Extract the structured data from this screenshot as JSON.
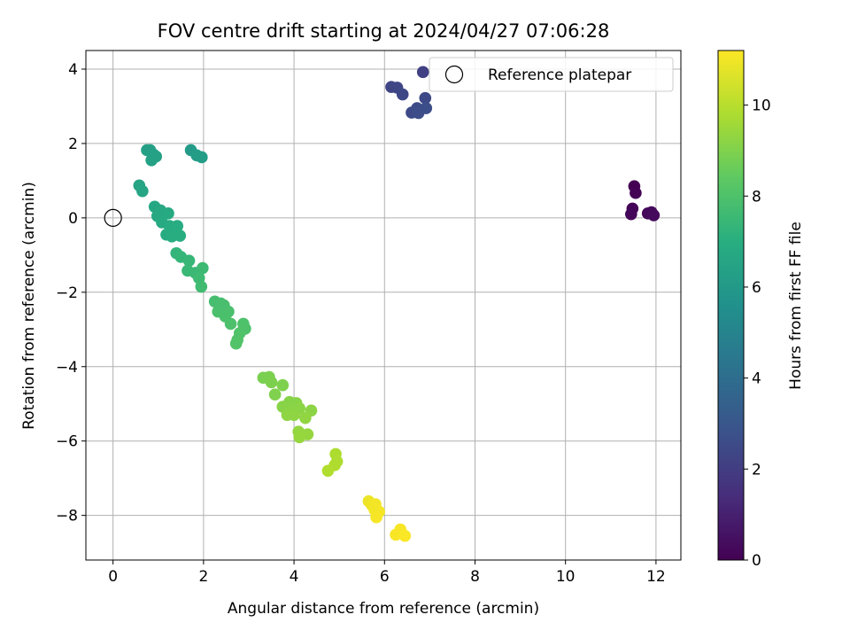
{
  "chart_data": {
    "type": "scatter",
    "title": "FOV centre drift starting at 2024/04/27 07:06:28",
    "xlabel": "Angular distance from reference (arcmin)",
    "ylabel": "Rotation from reference (arcmin)",
    "xlim": [
      -0.6,
      12.55
    ],
    "ylim": [
      -9.2,
      4.5
    ],
    "xticks": [
      0,
      2,
      4,
      6,
      8,
      10,
      12
    ],
    "yticks": [
      -8,
      -6,
      -4,
      -2,
      0,
      2,
      4
    ],
    "grid": true,
    "legend": {
      "placement": "top-right",
      "entries": [
        "Reference platepar"
      ]
    },
    "reference_point": {
      "x": 0,
      "y": 0
    },
    "colorbar": {
      "label": "Hours from first FF file",
      "range": [
        0,
        11.2
      ],
      "ticks": [
        0,
        2,
        4,
        6,
        8,
        10
      ],
      "colormap": "viridis"
    },
    "series": [
      {
        "values": [
          {
            "x": 11.52,
            "y": 0.85,
            "h": 0.0
          },
          {
            "x": 11.55,
            "y": 0.67,
            "h": 0.05
          },
          {
            "x": 11.48,
            "y": 0.25,
            "h": 0.1
          },
          {
            "x": 11.45,
            "y": 0.1,
            "h": 0.15
          },
          {
            "x": 11.82,
            "y": 0.12,
            "h": 0.2
          },
          {
            "x": 11.9,
            "y": 0.15,
            "h": 0.25
          },
          {
            "x": 11.95,
            "y": 0.07,
            "h": 0.3
          },
          {
            "x": 6.85,
            "y": 3.92,
            "h": 2.1
          },
          {
            "x": 6.15,
            "y": 3.52,
            "h": 2.3
          },
          {
            "x": 6.28,
            "y": 3.5,
            "h": 2.35
          },
          {
            "x": 6.4,
            "y": 3.32,
            "h": 2.4
          },
          {
            "x": 6.9,
            "y": 3.22,
            "h": 2.45
          },
          {
            "x": 6.6,
            "y": 2.83,
            "h": 2.5
          },
          {
            "x": 6.72,
            "y": 2.95,
            "h": 2.55
          },
          {
            "x": 6.75,
            "y": 2.82,
            "h": 2.6
          },
          {
            "x": 6.92,
            "y": 2.95,
            "h": 2.65
          },
          {
            "x": 1.72,
            "y": 1.82,
            "h": 6.1
          },
          {
            "x": 1.85,
            "y": 1.68,
            "h": 6.15
          },
          {
            "x": 1.96,
            "y": 1.63,
            "h": 6.2
          },
          {
            "x": 0.75,
            "y": 1.82,
            "h": 6.3
          },
          {
            "x": 0.82,
            "y": 1.82,
            "h": 6.32
          },
          {
            "x": 0.9,
            "y": 1.7,
            "h": 6.35
          },
          {
            "x": 0.95,
            "y": 1.65,
            "h": 6.38
          },
          {
            "x": 0.85,
            "y": 1.55,
            "h": 6.4
          },
          {
            "x": 0.58,
            "y": 0.87,
            "h": 6.5
          },
          {
            "x": 0.65,
            "y": 0.72,
            "h": 6.55
          },
          {
            "x": 0.92,
            "y": 0.3,
            "h": 6.65
          },
          {
            "x": 1.05,
            "y": 0.2,
            "h": 6.7
          },
          {
            "x": 0.98,
            "y": 0.05,
            "h": 6.72
          },
          {
            "x": 1.22,
            "y": 0.12,
            "h": 6.75
          },
          {
            "x": 1.08,
            "y": -0.12,
            "h": 6.8
          },
          {
            "x": 1.25,
            "y": -0.22,
            "h": 6.85
          },
          {
            "x": 1.18,
            "y": -0.45,
            "h": 6.88
          },
          {
            "x": 1.42,
            "y": -0.22,
            "h": 6.9
          },
          {
            "x": 1.35,
            "y": -0.42,
            "h": 6.92
          },
          {
            "x": 1.48,
            "y": -0.48,
            "h": 6.95
          },
          {
            "x": 1.3,
            "y": -0.5,
            "h": 6.97
          },
          {
            "x": 1.4,
            "y": -0.95,
            "h": 7.3
          },
          {
            "x": 1.5,
            "y": -1.05,
            "h": 7.35
          },
          {
            "x": 1.68,
            "y": -1.15,
            "h": 7.4
          },
          {
            "x": 1.65,
            "y": -1.42,
            "h": 7.45
          },
          {
            "x": 1.82,
            "y": -1.48,
            "h": 7.5
          },
          {
            "x": 1.98,
            "y": -1.35,
            "h": 7.55
          },
          {
            "x": 1.9,
            "y": -1.62,
            "h": 7.6
          },
          {
            "x": 1.95,
            "y": -1.85,
            "h": 7.65
          },
          {
            "x": 2.25,
            "y": -2.25,
            "h": 7.8
          },
          {
            "x": 2.38,
            "y": -2.3,
            "h": 7.82
          },
          {
            "x": 2.45,
            "y": -2.35,
            "h": 7.85
          },
          {
            "x": 2.32,
            "y": -2.52,
            "h": 7.87
          },
          {
            "x": 2.55,
            "y": -2.52,
            "h": 7.9
          },
          {
            "x": 2.48,
            "y": -2.65,
            "h": 7.92
          },
          {
            "x": 2.6,
            "y": -2.85,
            "h": 7.95
          },
          {
            "x": 2.88,
            "y": -2.85,
            "h": 7.98
          },
          {
            "x": 2.92,
            "y": -2.98,
            "h": 8.0
          },
          {
            "x": 2.8,
            "y": -3.1,
            "h": 8.02
          },
          {
            "x": 2.75,
            "y": -3.28,
            "h": 8.05
          },
          {
            "x": 2.72,
            "y": -3.38,
            "h": 8.08
          },
          {
            "x": 3.32,
            "y": -4.3,
            "h": 8.9
          },
          {
            "x": 3.45,
            "y": -4.28,
            "h": 8.92
          },
          {
            "x": 3.5,
            "y": -4.42,
            "h": 8.95
          },
          {
            "x": 3.75,
            "y": -4.5,
            "h": 8.97
          },
          {
            "x": 3.58,
            "y": -4.75,
            "h": 9.0
          },
          {
            "x": 3.9,
            "y": -4.95,
            "h": 9.1
          },
          {
            "x": 4.05,
            "y": -4.98,
            "h": 9.12
          },
          {
            "x": 3.75,
            "y": -5.08,
            "h": 9.15
          },
          {
            "x": 3.95,
            "y": -5.12,
            "h": 9.17
          },
          {
            "x": 4.12,
            "y": -5.12,
            "h": 9.2
          },
          {
            "x": 4.38,
            "y": -5.18,
            "h": 9.22
          },
          {
            "x": 3.85,
            "y": -5.3,
            "h": 9.25
          },
          {
            "x": 4.0,
            "y": -5.3,
            "h": 9.27
          },
          {
            "x": 4.25,
            "y": -5.38,
            "h": 9.3
          },
          {
            "x": 4.1,
            "y": -5.75,
            "h": 9.35
          },
          {
            "x": 4.3,
            "y": -5.82,
            "h": 9.37
          },
          {
            "x": 4.12,
            "y": -5.9,
            "h": 9.4
          },
          {
            "x": 4.92,
            "y": -6.35,
            "h": 9.8
          },
          {
            "x": 4.95,
            "y": -6.55,
            "h": 9.82
          },
          {
            "x": 4.9,
            "y": -6.65,
            "h": 9.85
          },
          {
            "x": 4.75,
            "y": -6.8,
            "h": 9.87
          },
          {
            "x": 5.65,
            "y": -7.62,
            "h": 10.9
          },
          {
            "x": 5.72,
            "y": -7.72,
            "h": 10.95
          },
          {
            "x": 5.8,
            "y": -7.7,
            "h": 11.0
          },
          {
            "x": 5.78,
            "y": -7.85,
            "h": 11.02
          },
          {
            "x": 5.88,
            "y": -7.9,
            "h": 11.05
          },
          {
            "x": 5.82,
            "y": -8.05,
            "h": 11.08
          },
          {
            "x": 6.35,
            "y": -8.38,
            "h": 11.1
          },
          {
            "x": 6.25,
            "y": -8.52,
            "h": 11.12
          },
          {
            "x": 6.45,
            "y": -8.55,
            "h": 11.15
          }
        ]
      }
    ]
  }
}
